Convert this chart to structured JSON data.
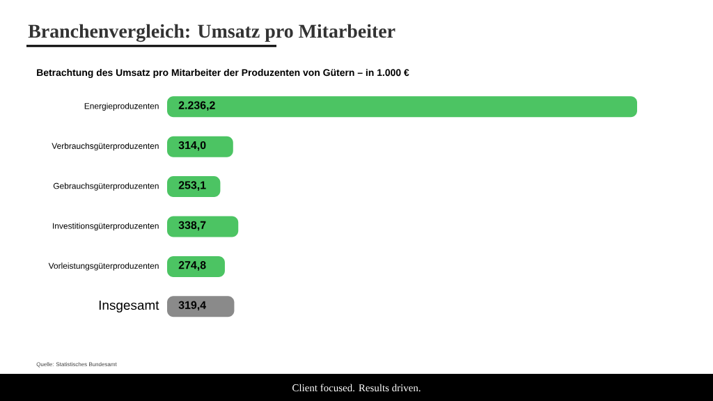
{
  "chart_data": {
    "type": "bar",
    "orientation": "horizontal",
    "title": "Branchenvergleich: Umsatz pro Mitarbeiter",
    "subtitle": "Betrachtung des Umsatz pro Mitarbeiter der Produzenten von Gütern – in 1.000 €",
    "categories": [
      "Energieproduzenten",
      "Verbrauchsgüterproduzenten",
      "Gebrauchsgüterproduzenten",
      "Investitionsgüterproduzenten",
      "Vorleistungsgüterproduzenten",
      "Insgesamt"
    ],
    "values": [
      2236.2,
      314.0,
      253.1,
      338.7,
      274.8,
      319.4
    ],
    "value_labels": [
      "2.236,2",
      "314,0",
      "253,1",
      "338,7",
      "274,8",
      "319,4"
    ],
    "colors": [
      "#4cc463",
      "#4cc463",
      "#4cc463",
      "#4cc463",
      "#4cc463",
      "#8a8a8a"
    ],
    "annotations": [
      "Quelle: Statistisches Bundesamt",
      "Client focused. Results driven."
    ]
  }
}
